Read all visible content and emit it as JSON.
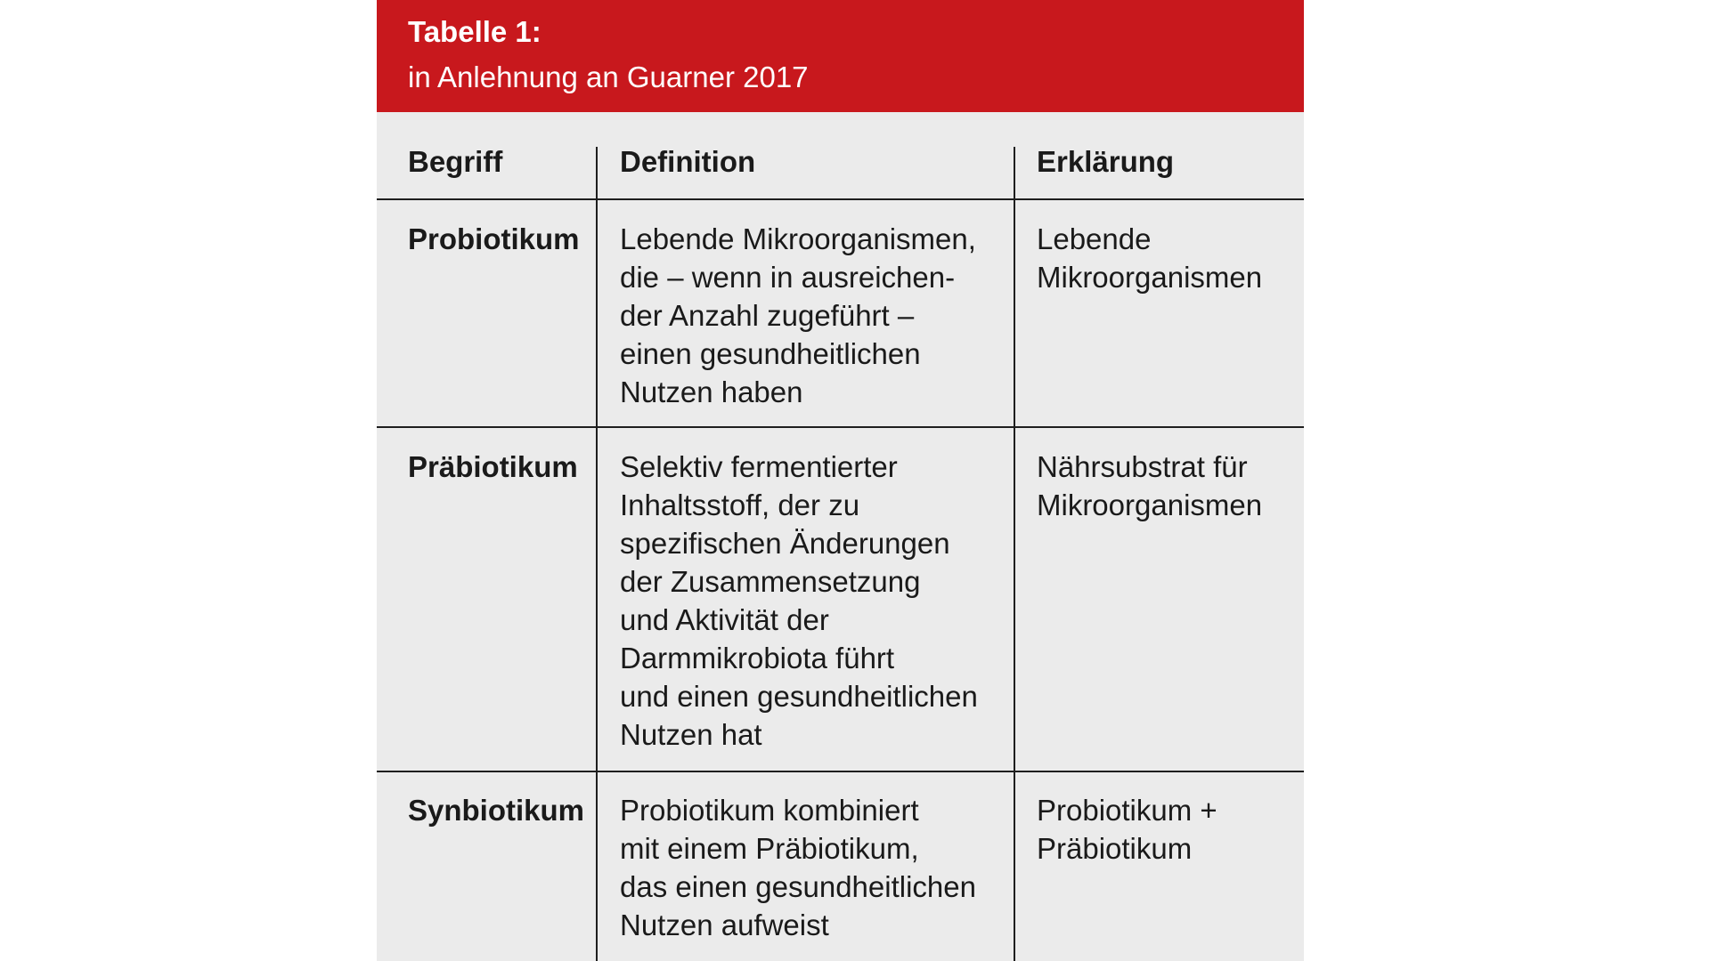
{
  "header": {
    "title": "Tabelle 1:",
    "subtitle": "in Anlehnung an Guarner 2017"
  },
  "table": {
    "columns": [
      "Begriff",
      "Definition",
      "Erklärung"
    ],
    "rows": [
      {
        "begriff": "Probiotikum",
        "definition": "Lebende Mikroorganismen,\ndie – wenn in ausreichen-\nder Anzahl zugeführt –\neinen gesundheitlichen\nNutzen haben",
        "erklaerung": "Lebende\nMikroorganismen"
      },
      {
        "begriff": "Präbiotikum",
        "definition": "Selektiv fermentierter\nInhaltsstoff, der zu\nspezifischen Änderungen\nder Zusammensetzung\nund Aktivität der\nDarmmikrobiota führt\nund einen gesundheitlichen\nNutzen hat",
        "erklaerung": "Nährsubstrat für\nMikroorganismen"
      },
      {
        "begriff": "Synbiotikum",
        "definition": "Probiotikum kombiniert\nmit einem Präbiotikum,\ndas einen gesundheitlichen\nNutzen aufweist",
        "erklaerung": "Probiotikum +\nPräbiotikum"
      }
    ]
  },
  "colors": {
    "header_background": "#c8181d",
    "table_background": "#ebebeb",
    "rule": "#1e1e1e"
  }
}
